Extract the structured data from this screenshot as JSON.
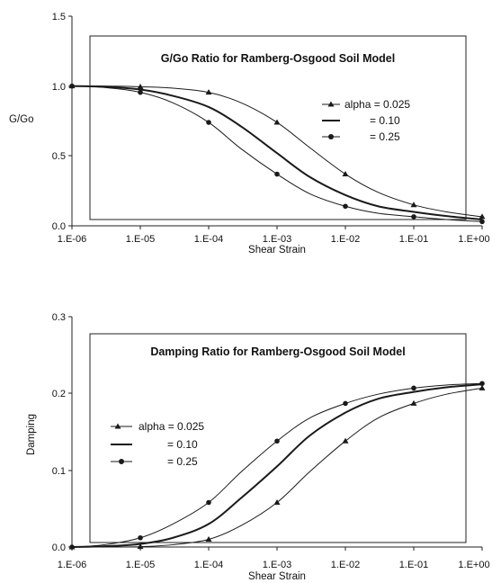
{
  "colors": {
    "line": "#1a1a1a",
    "background": "#ffffff"
  },
  "chart_data": [
    {
      "id": "gg0",
      "type": "line",
      "title": "G/Go Ratio for Ramberg-Osgood Soil Model",
      "xlabel": "Shear Strain",
      "ylabel": "G/Go",
      "x_scale": "log",
      "xlim": [
        1e-06,
        1
      ],
      "ylim": [
        0,
        1.5
      ],
      "x_ticks": [
        "1.E-06",
        "1.E-05",
        "1.E-04",
        "1.E-03",
        "1.E-02",
        "1.E-01",
        "1.E+00"
      ],
      "y_ticks": [
        "0.0",
        "0.5",
        "1.0",
        "1.5"
      ],
      "grid": false,
      "legend": "right",
      "series": [
        {
          "name": "alpha = 0.025",
          "marker": "triangle",
          "x": [
            1e-06,
            1e-05,
            0.0001,
            0.001,
            0.01,
            0.1,
            1
          ],
          "y": [
            1.0,
            0.995,
            0.955,
            0.74,
            0.37,
            0.15,
            0.065
          ],
          "curve_x": [
            1e-06,
            3e-06,
            1e-05,
            3e-05,
            0.0001,
            0.0003,
            0.001,
            0.003,
            0.01,
            0.03,
            0.1,
            0.3,
            1
          ],
          "curve_y": [
            1.0,
            1.0,
            0.995,
            0.985,
            0.955,
            0.88,
            0.74,
            0.56,
            0.37,
            0.24,
            0.15,
            0.1,
            0.065
          ]
        },
        {
          "name": "= 0.10",
          "marker": "none",
          "x": [
            1e-06,
            1e-05,
            0.0001,
            0.001,
            0.01,
            0.1,
            1
          ],
          "y": [
            1.0,
            0.975,
            0.85,
            0.52,
            0.22,
            0.1,
            0.045
          ],
          "curve_x": [
            1e-06,
            3e-06,
            1e-05,
            3e-05,
            0.0001,
            0.0003,
            0.001,
            0.003,
            0.01,
            0.03,
            0.1,
            0.3,
            1
          ],
          "curve_y": [
            1.0,
            0.995,
            0.975,
            0.93,
            0.85,
            0.71,
            0.52,
            0.35,
            0.22,
            0.14,
            0.1,
            0.07,
            0.045
          ]
        },
        {
          "name": "= 0.25",
          "marker": "circle",
          "x": [
            1e-06,
            1e-05,
            0.0001,
            0.001,
            0.01,
            0.1,
            1
          ],
          "y": [
            1.0,
            0.955,
            0.74,
            0.37,
            0.14,
            0.065,
            0.03
          ],
          "curve_x": [
            1e-06,
            3e-06,
            1e-05,
            3e-05,
            0.0001,
            0.0003,
            0.001,
            0.003,
            0.01,
            0.03,
            0.1,
            0.3,
            1
          ],
          "curve_y": [
            1.0,
            0.99,
            0.955,
            0.88,
            0.74,
            0.55,
            0.37,
            0.23,
            0.14,
            0.09,
            0.065,
            0.045,
            0.03
          ]
        }
      ]
    },
    {
      "id": "damping",
      "type": "line",
      "title": "Damping Ratio for Ramberg-Osgood Soil Model",
      "xlabel": "Shear Strain",
      "ylabel": "Damping",
      "x_scale": "log",
      "xlim": [
        1e-06,
        1
      ],
      "ylim": [
        0,
        0.3
      ],
      "x_ticks": [
        "1.E-06",
        "1.E-05",
        "1.E-04",
        "1.E-03",
        "1.E-02",
        "1.E-01",
        "1.E+00"
      ],
      "y_ticks": [
        "0.0",
        "0.1",
        "0.2",
        "0.3"
      ],
      "grid": false,
      "legend": "left",
      "series": [
        {
          "name": "alpha = 0.025",
          "marker": "triangle",
          "x": [
            1e-06,
            1e-05,
            0.0001,
            0.001,
            0.01,
            0.1,
            1
          ],
          "y": [
            0.0,
            0.0005,
            0.01,
            0.058,
            0.138,
            0.187,
            0.207
          ],
          "curve_x": [
            1e-06,
            3e-06,
            1e-05,
            3e-05,
            0.0001,
            0.0003,
            0.001,
            0.003,
            0.01,
            0.03,
            0.1,
            0.3,
            1
          ],
          "curve_y": [
            0.0,
            0.0,
            0.0005,
            0.003,
            0.01,
            0.028,
            0.058,
            0.098,
            0.138,
            0.168,
            0.187,
            0.199,
            0.207
          ]
        },
        {
          "name": "= 0.10",
          "marker": "none",
          "x": [
            1e-06,
            1e-05,
            0.0001,
            0.001,
            0.01,
            0.1,
            1
          ],
          "y": [
            0.0,
            0.004,
            0.03,
            0.105,
            0.175,
            0.202,
            0.212
          ],
          "curve_x": [
            1e-06,
            3e-06,
            1e-05,
            3e-05,
            0.0001,
            0.0003,
            0.001,
            0.003,
            0.01,
            0.03,
            0.1,
            0.3,
            1
          ],
          "curve_y": [
            0.0,
            0.001,
            0.004,
            0.012,
            0.03,
            0.064,
            0.105,
            0.145,
            0.175,
            0.193,
            0.202,
            0.208,
            0.212
          ]
        },
        {
          "name": "= 0.25",
          "marker": "circle",
          "x": [
            1e-06,
            1e-05,
            0.0001,
            0.001,
            0.01,
            0.1,
            1
          ],
          "y": [
            0.0,
            0.012,
            0.058,
            0.138,
            0.187,
            0.207,
            0.213
          ],
          "curve_x": [
            1e-06,
            3e-06,
            1e-05,
            3e-05,
            0.0001,
            0.0003,
            0.001,
            0.003,
            0.01,
            0.03,
            0.1,
            0.3,
            1
          ],
          "curve_y": [
            0.0,
            0.003,
            0.012,
            0.03,
            0.058,
            0.098,
            0.138,
            0.168,
            0.187,
            0.199,
            0.207,
            0.211,
            0.213
          ]
        }
      ]
    }
  ]
}
